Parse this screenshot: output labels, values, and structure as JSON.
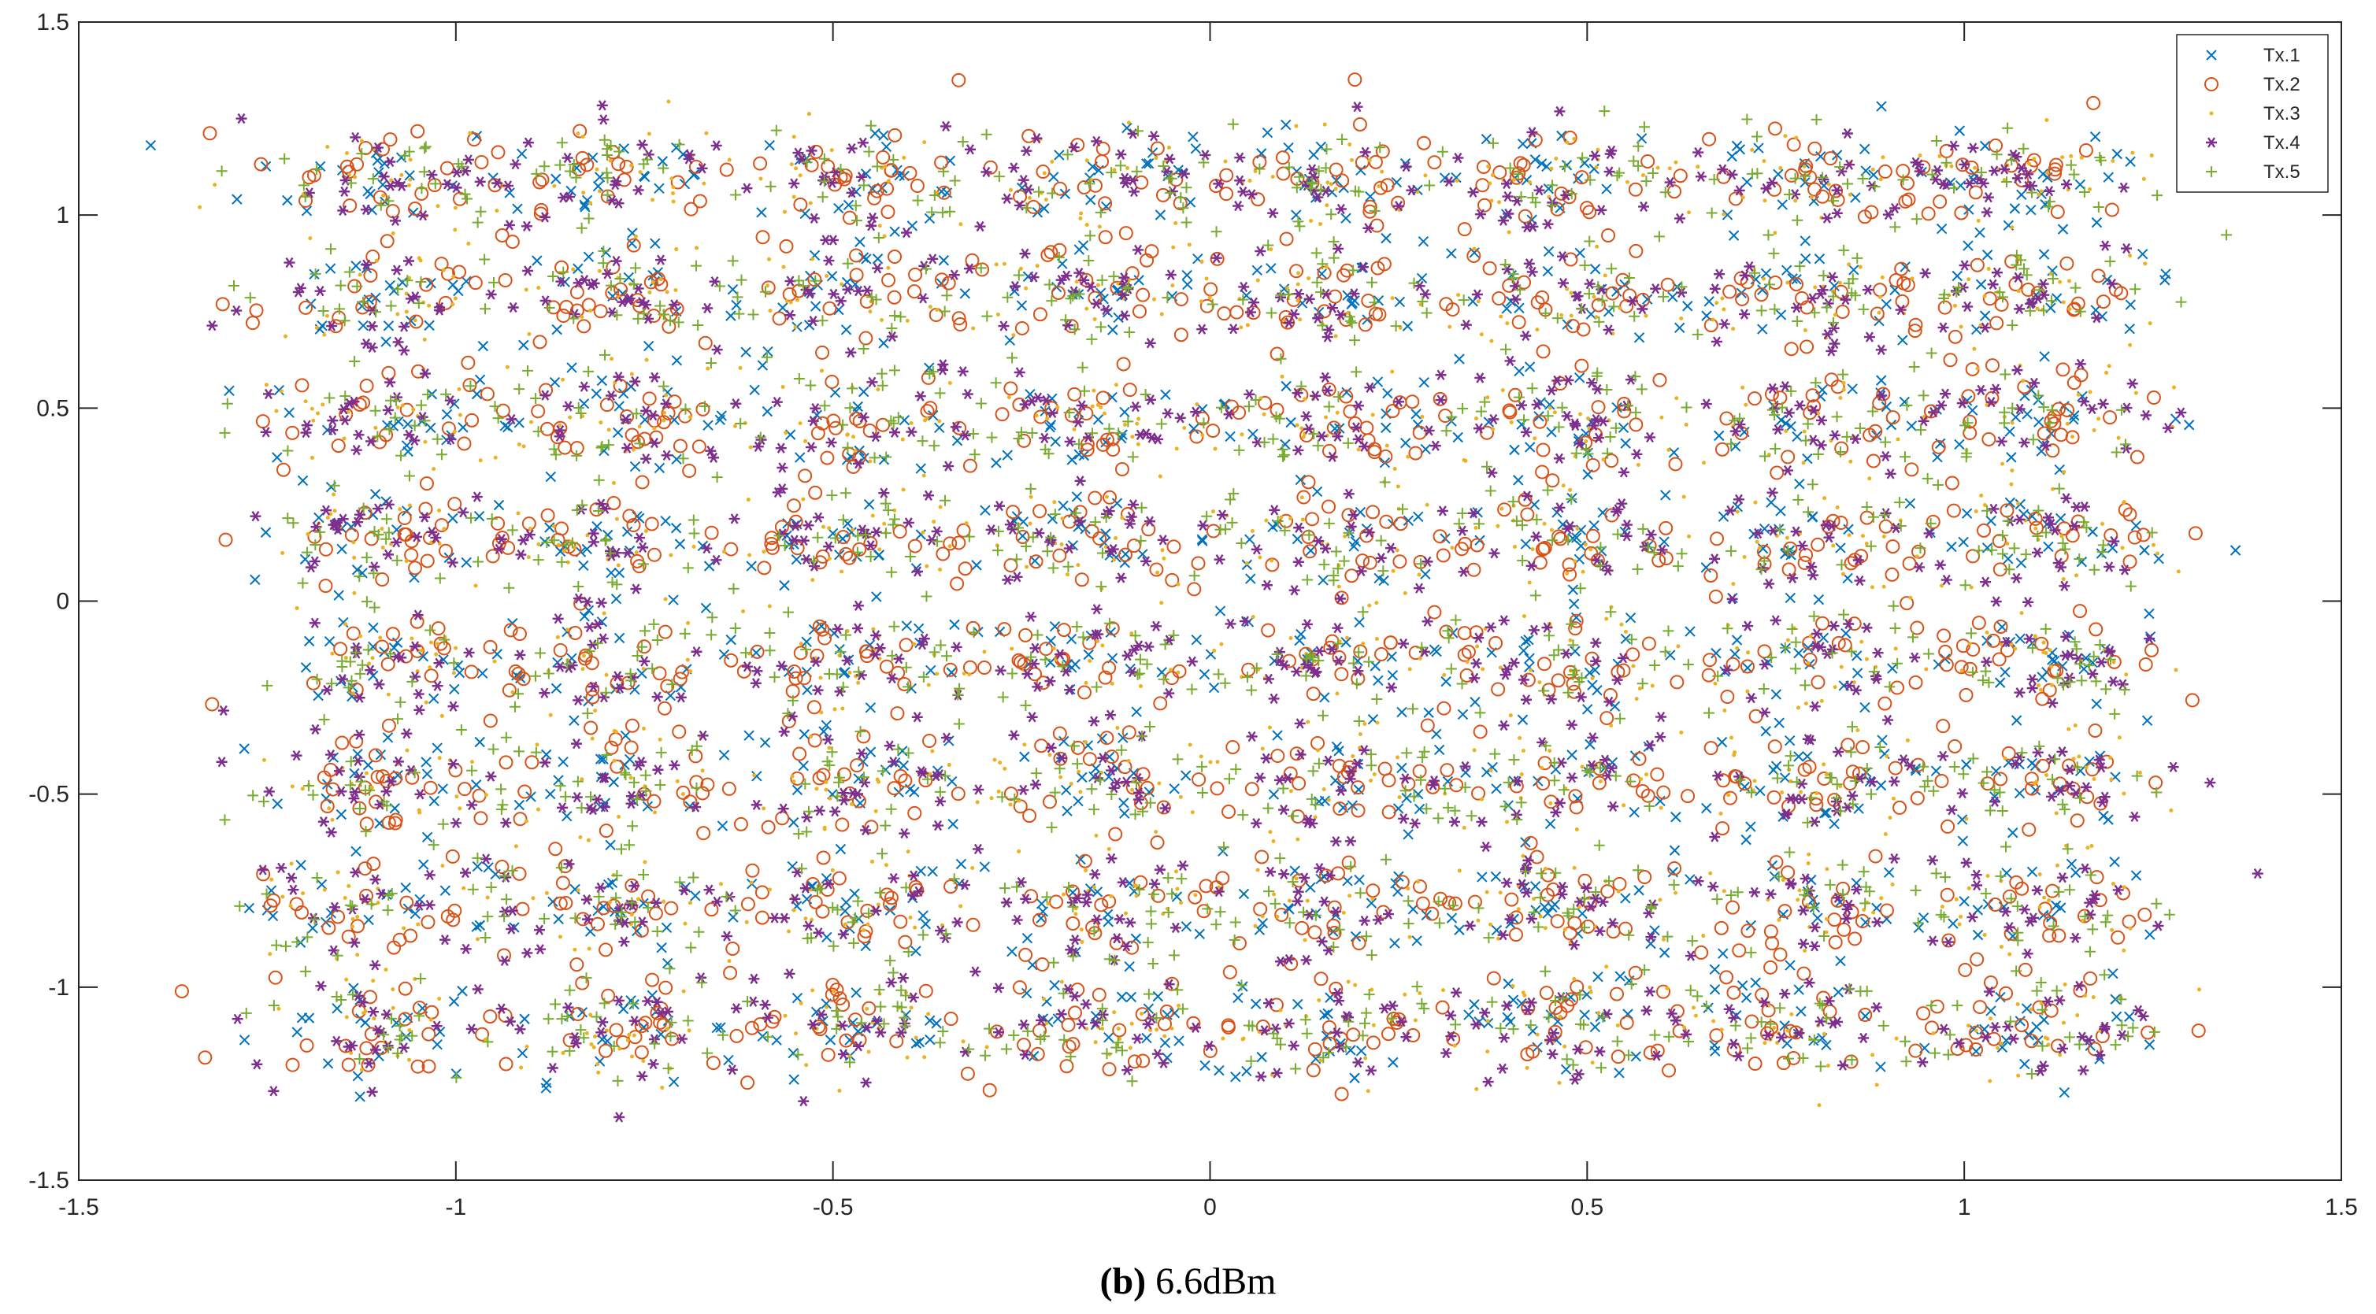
{
  "chart_data": {
    "type": "scatter",
    "title": "",
    "xlabel": "",
    "ylabel": "",
    "xlim": [
      -1.5,
      1.5
    ],
    "ylim": [
      -1.5,
      1.5
    ],
    "xticks": [
      -1.5,
      -1,
      -0.5,
      0,
      0.5,
      1,
      1.5
    ],
    "yticks": [
      -1.5,
      -1,
      -0.5,
      0,
      0.5,
      1,
      1.5
    ],
    "xtick_labels": [
      "-1.5",
      "-1",
      "-0.5",
      "0",
      "0.5",
      "1",
      "1.5"
    ],
    "ytick_labels": [
      "-1.5",
      "-1",
      "-0.5",
      "0",
      "0.5",
      "1",
      "1.5"
    ],
    "grid": false,
    "legend_position": "top-right",
    "constellation": {
      "i_levels": [
        -1.1,
        -0.79,
        -0.47,
        -0.16,
        0.16,
        0.47,
        0.79,
        1.1
      ],
      "q_levels": [
        -1.1,
        -0.79,
        -0.47,
        -0.16,
        0.16,
        0.47,
        0.79,
        1.1
      ],
      "noise_std": 0.07
    },
    "series": [
      {
        "name": "Tx.1",
        "marker": "x",
        "color": "#0072BD"
      },
      {
        "name": "Tx.2",
        "marker": "o",
        "color": "#D95319"
      },
      {
        "name": "Tx.3",
        "marker": "dot",
        "color": "#EDB120"
      },
      {
        "name": "Tx.4",
        "marker": "asterisk",
        "color": "#7E2F8E"
      },
      {
        "name": "Tx.5",
        "marker": "plus",
        "color": "#77AC30"
      }
    ]
  },
  "caption": {
    "label": "(b)",
    "text": " 6.6dBm"
  }
}
